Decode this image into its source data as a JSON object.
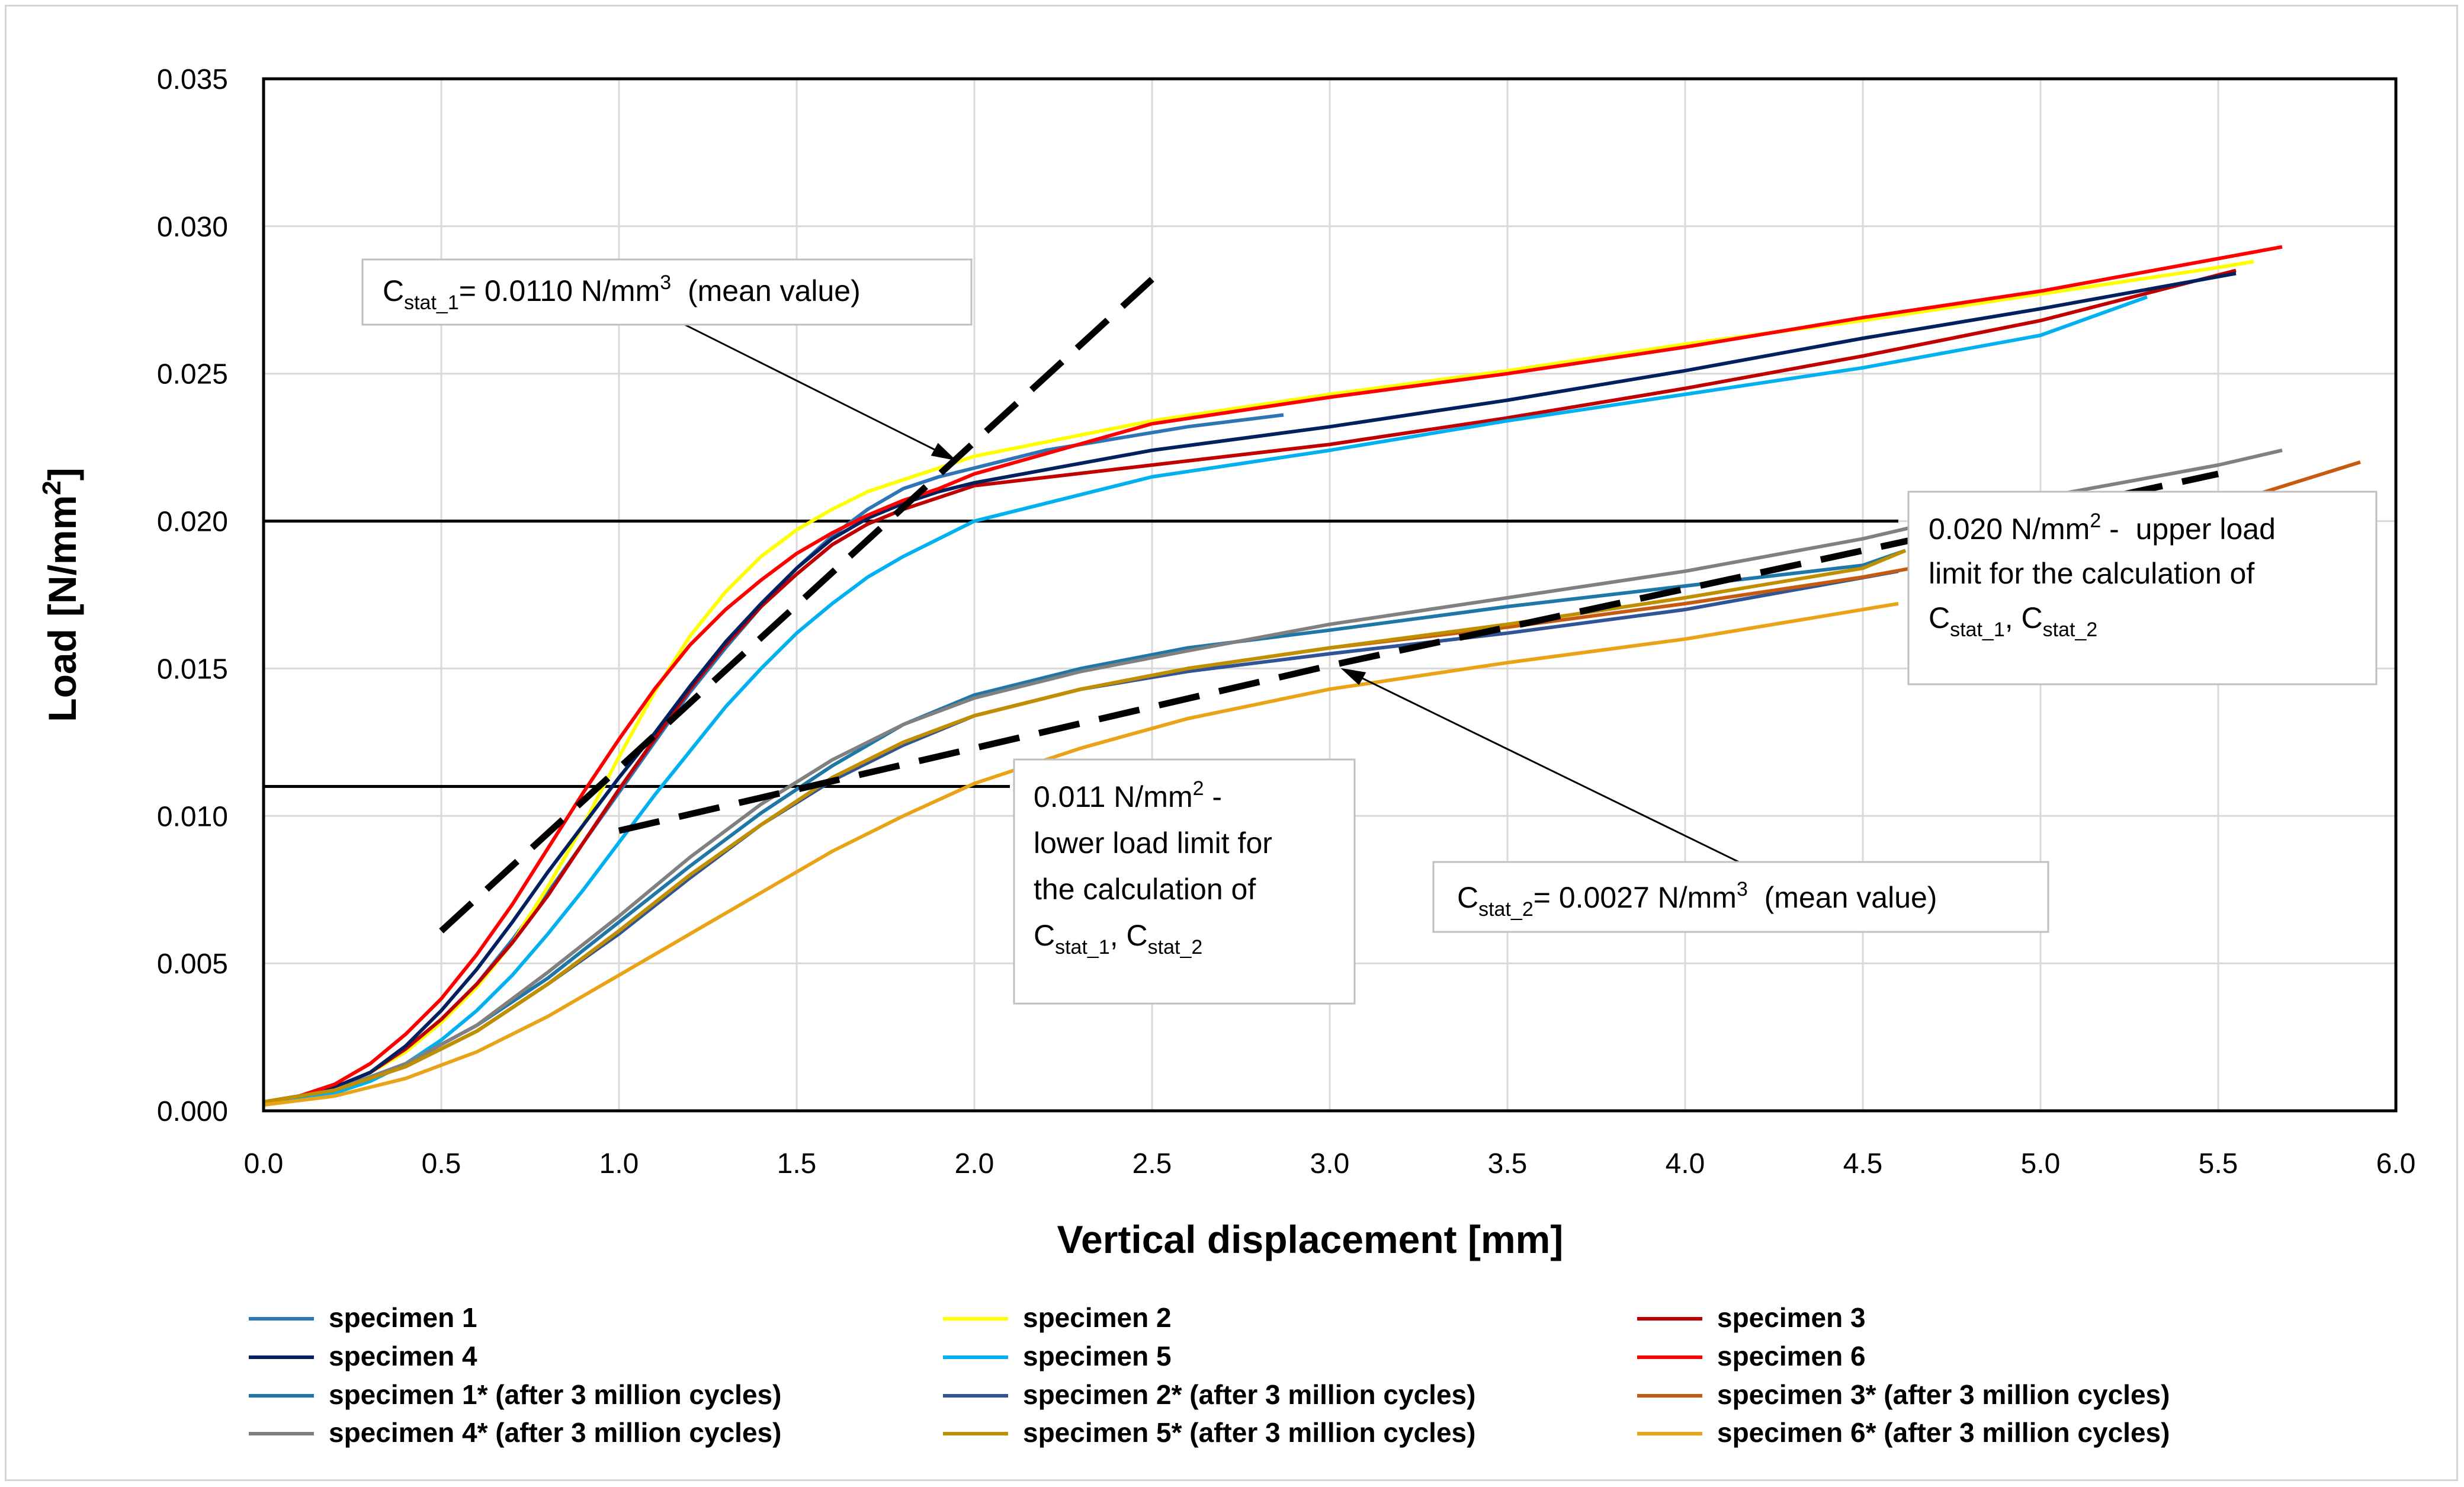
{
  "chart_data": {
    "type": "line",
    "title": "",
    "xlabel": "Vertical displacement [mm]",
    "ylabel_main": "Load",
    "ylabel_unit": "[N/mm",
    "ylabel_sup": "2",
    "ylabel_close": "]",
    "xlim": [
      0,
      6
    ],
    "ylim": [
      0,
      0.035
    ],
    "grid": true,
    "xticks": [
      {
        "value": 0.0,
        "label": "0.0"
      },
      {
        "value": 0.5,
        "label": "0.5"
      },
      {
        "value": 1.0,
        "label": "1.0"
      },
      {
        "value": 1.5,
        "label": "1.5"
      },
      {
        "value": 2.0,
        "label": "2.0"
      },
      {
        "value": 2.5,
        "label": "2.5"
      },
      {
        "value": 3.0,
        "label": "3.0"
      },
      {
        "value": 3.5,
        "label": "3.5"
      },
      {
        "value": 4.0,
        "label": "4.0"
      },
      {
        "value": 4.5,
        "label": "4.5"
      },
      {
        "value": 5.0,
        "label": "5.0"
      },
      {
        "value": 5.5,
        "label": "5.5"
      },
      {
        "value": 6.0,
        "label": "6.0"
      }
    ],
    "yticks": [
      {
        "value": 0.0,
        "label": "0.000"
      },
      {
        "value": 0.005,
        "label": "0.005"
      },
      {
        "value": 0.01,
        "label": "0.010"
      },
      {
        "value": 0.015,
        "label": "0.015"
      },
      {
        "value": 0.02,
        "label": "0.020"
      },
      {
        "value": 0.025,
        "label": "0.025"
      },
      {
        "value": 0.03,
        "label": "0.030"
      },
      {
        "value": 0.035,
        "label": "0.035"
      }
    ],
    "series": [
      {
        "name": "specimen 1",
        "color": "#2E75B6",
        "x": [
          0,
          0.1,
          0.2,
          0.3,
          0.4,
          0.5,
          0.6,
          0.7,
          0.8,
          0.9,
          1.0,
          1.1,
          1.2,
          1.3,
          1.4,
          1.5,
          1.6,
          1.7,
          1.8,
          1.9,
          2.0,
          2.2,
          2.4,
          2.6,
          2.87
        ],
        "y": [
          0.0003,
          0.0005,
          0.0008,
          0.0013,
          0.0021,
          0.0031,
          0.0043,
          0.0058,
          0.0074,
          0.0091,
          0.0108,
          0.0125,
          0.0142,
          0.0157,
          0.0171,
          0.0184,
          0.0195,
          0.0204,
          0.0211,
          0.0215,
          0.0218,
          0.0224,
          0.0228,
          0.0232,
          0.0236
        ]
      },
      {
        "name": "specimen 2",
        "color": "#FFFF00",
        "x": [
          0,
          0.1,
          0.2,
          0.3,
          0.4,
          0.5,
          0.6,
          0.7,
          0.8,
          0.9,
          1.0,
          1.1,
          1.2,
          1.3,
          1.4,
          1.5,
          1.6,
          1.7,
          1.8,
          1.9,
          2.0,
          2.5,
          3.0,
          3.5,
          4.0,
          4.5,
          5.0,
          5.5,
          5.6
        ],
        "y": [
          0.0003,
          0.0005,
          0.0008,
          0.0013,
          0.002,
          0.003,
          0.0042,
          0.0057,
          0.0076,
          0.0097,
          0.012,
          0.0142,
          0.0161,
          0.0176,
          0.0188,
          0.0197,
          0.0204,
          0.021,
          0.0214,
          0.0218,
          0.0222,
          0.0234,
          0.0243,
          0.0251,
          0.026,
          0.0268,
          0.0277,
          0.0286,
          0.0288
        ]
      },
      {
        "name": "specimen 3",
        "color": "#C00000",
        "x": [
          0,
          0.1,
          0.2,
          0.3,
          0.4,
          0.5,
          0.6,
          0.7,
          0.8,
          0.9,
          1.0,
          1.1,
          1.2,
          1.3,
          1.4,
          1.5,
          1.6,
          1.7,
          1.8,
          1.9,
          2.0,
          2.5,
          3.0,
          3.5,
          4.0,
          4.5,
          5.0,
          5.55
        ],
        "y": [
          0.0003,
          0.0005,
          0.0008,
          0.0013,
          0.0021,
          0.0031,
          0.0043,
          0.0057,
          0.0073,
          0.0091,
          0.0109,
          0.0126,
          0.0143,
          0.0158,
          0.0171,
          0.0182,
          0.0192,
          0.0199,
          0.0204,
          0.0208,
          0.0212,
          0.0219,
          0.0226,
          0.0235,
          0.0245,
          0.0256,
          0.0268,
          0.0285
        ]
      },
      {
        "name": "specimen 4",
        "color": "#002060",
        "x": [
          0,
          0.1,
          0.2,
          0.3,
          0.4,
          0.5,
          0.6,
          0.7,
          0.8,
          0.9,
          1.0,
          1.1,
          1.2,
          1.3,
          1.4,
          1.5,
          1.6,
          1.7,
          1.8,
          1.9,
          2.0,
          2.5,
          3.0,
          3.5,
          4.0,
          4.5,
          5.0,
          5.55
        ],
        "y": [
          0.0003,
          0.0005,
          0.0008,
          0.0013,
          0.0022,
          0.0034,
          0.0048,
          0.0064,
          0.0081,
          0.0097,
          0.0113,
          0.0128,
          0.0144,
          0.0159,
          0.0172,
          0.0184,
          0.0194,
          0.0201,
          0.0206,
          0.021,
          0.0213,
          0.0224,
          0.0232,
          0.0241,
          0.0251,
          0.0262,
          0.0272,
          0.0284
        ]
      },
      {
        "name": "specimen 5",
        "color": "#00B0F0",
        "x": [
          0,
          0.1,
          0.2,
          0.3,
          0.4,
          0.5,
          0.6,
          0.7,
          0.8,
          0.9,
          1.0,
          1.1,
          1.2,
          1.3,
          1.4,
          1.5,
          1.6,
          1.7,
          1.8,
          1.9,
          2.0,
          2.5,
          3.0,
          3.5,
          4.0,
          4.5,
          5.0,
          5.3
        ],
        "y": [
          0.0002,
          0.0004,
          0.0006,
          0.001,
          0.0016,
          0.0024,
          0.0034,
          0.0046,
          0.006,
          0.0075,
          0.0091,
          0.0107,
          0.0122,
          0.0137,
          0.015,
          0.0162,
          0.0172,
          0.0181,
          0.0188,
          0.0194,
          0.02,
          0.0215,
          0.0224,
          0.0234,
          0.0243,
          0.0252,
          0.0263,
          0.0276
        ]
      },
      {
        "name": "specimen 6",
        "color": "#FF0000",
        "x": [
          0,
          0.1,
          0.2,
          0.3,
          0.4,
          0.5,
          0.6,
          0.7,
          0.8,
          0.9,
          1.0,
          1.1,
          1.2,
          1.3,
          1.4,
          1.5,
          1.6,
          1.7,
          1.8,
          1.9,
          2.0,
          2.5,
          3.0,
          3.5,
          4.0,
          4.5,
          5.0,
          5.68
        ],
        "y": [
          0.0003,
          0.0005,
          0.0009,
          0.0016,
          0.0026,
          0.0038,
          0.0053,
          0.007,
          0.0089,
          0.0108,
          0.0126,
          0.0143,
          0.0158,
          0.017,
          0.018,
          0.0189,
          0.0196,
          0.0202,
          0.0207,
          0.0211,
          0.0216,
          0.0233,
          0.0242,
          0.025,
          0.0259,
          0.0269,
          0.0278,
          0.0293
        ]
      },
      {
        "name": "specimen 1* (after 3 million cycles)",
        "color": "#1F77A8",
        "x": [
          0,
          0.2,
          0.4,
          0.6,
          0.8,
          1.0,
          1.2,
          1.4,
          1.6,
          1.8,
          2.0,
          2.3,
          2.6,
          3.0,
          3.5,
          4.0,
          4.5,
          4.62
        ],
        "y": [
          0.0003,
          0.0007,
          0.0016,
          0.0029,
          0.0045,
          0.0064,
          0.0083,
          0.0101,
          0.0117,
          0.0131,
          0.0141,
          0.015,
          0.0157,
          0.0163,
          0.0171,
          0.0178,
          0.0185,
          0.019
        ]
      },
      {
        "name": "specimen 2* (after 3 million cycles)",
        "color": "#2F5597",
        "x": [
          0,
          0.2,
          0.4,
          0.6,
          0.8,
          1.0,
          1.2,
          1.4,
          1.6,
          1.8,
          2.0,
          2.3,
          2.6,
          3.0,
          3.5,
          4.0,
          4.6
        ],
        "y": [
          0.0003,
          0.0007,
          0.0015,
          0.0027,
          0.0043,
          0.006,
          0.0079,
          0.0097,
          0.0112,
          0.0124,
          0.0134,
          0.0143,
          0.0149,
          0.0155,
          0.0162,
          0.017,
          0.0183
        ]
      },
      {
        "name": "specimen 3* (after 3 million cycles)",
        "color": "#C55A11",
        "x": [
          0,
          0.2,
          0.4,
          0.6,
          0.8,
          1.0,
          1.2,
          1.4,
          1.6,
          1.8,
          2.0,
          2.3,
          2.6,
          3.0,
          3.5,
          4.0,
          4.5,
          5.0,
          5.5,
          5.9
        ],
        "y": [
          0.0003,
          0.0007,
          0.0015,
          0.0027,
          0.0043,
          0.0061,
          0.008,
          0.0097,
          0.0113,
          0.0125,
          0.0134,
          0.0143,
          0.015,
          0.0157,
          0.0164,
          0.0172,
          0.0181,
          0.0192,
          0.0205,
          0.022
        ]
      },
      {
        "name": "specimen 4* (after 3 million cycles)",
        "color": "#808080",
        "x": [
          0,
          0.2,
          0.4,
          0.6,
          0.8,
          1.0,
          1.2,
          1.4,
          1.6,
          1.8,
          2.0,
          2.3,
          2.6,
          3.0,
          3.5,
          4.0,
          4.5,
          5.0,
          5.5,
          5.68
        ],
        "y": [
          0.0003,
          0.0007,
          0.0016,
          0.0029,
          0.0047,
          0.0066,
          0.0086,
          0.0104,
          0.0119,
          0.0131,
          0.014,
          0.0149,
          0.0156,
          0.0165,
          0.0174,
          0.0183,
          0.0194,
          0.0208,
          0.0219,
          0.0224
        ]
      },
      {
        "name": "specimen 5* (after 3 million cycles)",
        "color": "#BF8F00",
        "x": [
          0,
          0.2,
          0.4,
          0.6,
          0.8,
          1.0,
          1.2,
          1.4,
          1.6,
          1.8,
          2.0,
          2.3,
          2.6,
          3.0,
          3.5,
          4.0,
          4.5,
          4.62
        ],
        "y": [
          0.0003,
          0.0007,
          0.0015,
          0.0027,
          0.0043,
          0.0061,
          0.008,
          0.0097,
          0.0113,
          0.0125,
          0.0134,
          0.0143,
          0.015,
          0.0157,
          0.0165,
          0.0174,
          0.0184,
          0.019
        ]
      },
      {
        "name": "specimen 6* (after 3 million cycles)",
        "color": "#E8A317",
        "x": [
          0,
          0.2,
          0.4,
          0.6,
          0.8,
          1.0,
          1.2,
          1.4,
          1.6,
          1.8,
          2.0,
          2.3,
          2.6,
          3.0,
          3.5,
          4.0,
          4.6
        ],
        "y": [
          0.0002,
          0.0005,
          0.0011,
          0.002,
          0.0032,
          0.0046,
          0.006,
          0.0074,
          0.0088,
          0.01,
          0.0111,
          0.0123,
          0.0133,
          0.0143,
          0.0152,
          0.016,
          0.0172
        ]
      }
    ],
    "fit_lines": [
      {
        "name": "C_stat_1 fit",
        "color": "#000000",
        "x": [
          0.5,
          2.5
        ],
        "y": [
          0.0061,
          0.0282
        ]
      },
      {
        "name": "C_stat_2 fit",
        "color": "#000000",
        "x": [
          1.0,
          2.0,
          3.0,
          4.0,
          5.0,
          5.5
        ],
        "y": [
          0.0095,
          0.0123,
          0.0151,
          0.0177,
          0.0203,
          0.0216
        ]
      }
    ],
    "reference_lines": [
      {
        "name": "upper load limit",
        "y": 0.02,
        "x_end": 4.6
      },
      {
        "name": "lower load limit",
        "y": 0.011,
        "x_end": 2.1
      }
    ],
    "annotations": {
      "cstat1": {
        "prefix": "C",
        "sub": "stat_1",
        "text": "= 0.0110 N/mm",
        "sup": "3",
        "suffix": "  (mean value)",
        "arrow_to": [
          1.92,
          0.0223
        ]
      },
      "cstat2": {
        "prefix": "C",
        "sub": "stat_2",
        "text": "= 0.0027 N/mm",
        "sup": "3",
        "suffix": "  (mean value)",
        "arrow_to": [
          3.05,
          0.0149
        ]
      },
      "upper": {
        "line1_a": "0.020 N/mm",
        "line1_sup": "2",
        "line1_b": " -  upper load",
        "line2": "limit for the calculation of",
        "line3_c1": "C",
        "line3_sub1": "stat_1",
        "line3_mid": ", C",
        "line3_sub2": "stat_2"
      },
      "lower": {
        "line1_a": "0.011 N/mm",
        "line1_sup": "2",
        "line1_b": " -",
        "line2": "lower load limit for",
        "line3": "the calculation of",
        "line4_c1": "C",
        "line4_sub1": "stat_1",
        "line4_mid": ", C",
        "line4_sub2": "stat_2"
      }
    }
  }
}
